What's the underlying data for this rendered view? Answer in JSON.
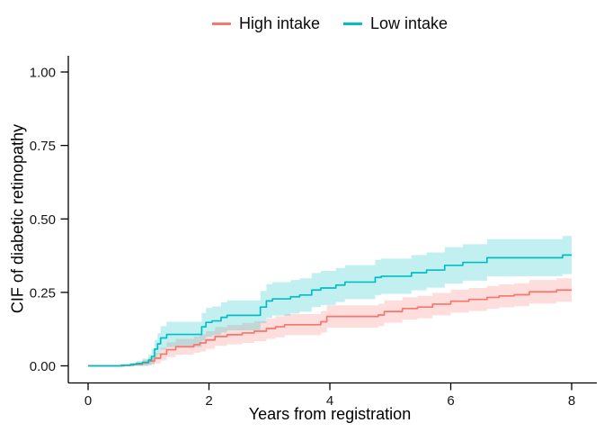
{
  "legend": {
    "items": [
      {
        "label": "High intake",
        "color": "#F8766D"
      },
      {
        "label": "Low intake",
        "color": "#00BFC4"
      }
    ]
  },
  "axes": {
    "x_title": "Years from registration",
    "y_title": "CIF of diabetic retinopathy"
  },
  "chart_data": {
    "type": "line",
    "subtype": "step-cumulative-incidence",
    "title": "",
    "xlabel": "Years from registration",
    "ylabel": "CIF of diabetic retinopathy",
    "xlim": [
      0,
      8
    ],
    "ylim": [
      0,
      1
    ],
    "xticks": [
      0,
      2,
      4,
      6,
      8
    ],
    "xtick_labels": [
      "0",
      "2",
      "4",
      "6",
      "8"
    ],
    "yticks": [
      0,
      0.25,
      0.5,
      0.75,
      1
    ],
    "ytick_labels": [
      "0.00",
      "0.25",
      "0.50",
      "0.75",
      "1.00"
    ],
    "grid": false,
    "legend_position": "top-center",
    "background": "#ffffff",
    "axis_color": "#000000",
    "band_opacity": 0.24,
    "series": [
      {
        "name": "High intake",
        "color": "#F8766D",
        "x": [
          0,
          0.6,
          0.75,
          0.9,
          1.0,
          1.1,
          1.2,
          1.3,
          1.45,
          1.75,
          1.85,
          1.95,
          2.1,
          2.3,
          2.55,
          2.75,
          2.95,
          3.1,
          3.25,
          3.85,
          3.95,
          4.8,
          4.9,
          5.2,
          5.45,
          5.7,
          6.0,
          6.3,
          6.6,
          6.8,
          7.05,
          7.3,
          7.75,
          8.0
        ],
        "y": [
          0,
          0.002,
          0.005,
          0.01,
          0.016,
          0.026,
          0.04,
          0.055,
          0.065,
          0.072,
          0.078,
          0.088,
          0.1,
          0.106,
          0.112,
          0.118,
          0.127,
          0.133,
          0.14,
          0.15,
          0.168,
          0.173,
          0.185,
          0.195,
          0.2,
          0.21,
          0.22,
          0.226,
          0.233,
          0.238,
          0.242,
          0.252,
          0.258,
          0.258
        ],
        "upper": [
          0,
          0.006,
          0.011,
          0.02,
          0.029,
          0.044,
          0.062,
          0.08,
          0.092,
          0.1,
          0.107,
          0.118,
          0.132,
          0.139,
          0.146,
          0.152,
          0.162,
          0.169,
          0.176,
          0.187,
          0.206,
          0.211,
          0.223,
          0.233,
          0.238,
          0.248,
          0.259,
          0.265,
          0.272,
          0.277,
          0.281,
          0.292,
          0.298,
          0.298
        ],
        "lower": [
          0,
          0,
          0,
          0,
          0.003,
          0.008,
          0.018,
          0.03,
          0.038,
          0.044,
          0.049,
          0.058,
          0.068,
          0.073,
          0.078,
          0.084,
          0.092,
          0.097,
          0.104,
          0.113,
          0.13,
          0.135,
          0.147,
          0.157,
          0.162,
          0.172,
          0.181,
          0.187,
          0.194,
          0.199,
          0.203,
          0.212,
          0.218,
          0.218
        ]
      },
      {
        "name": "Low intake",
        "color": "#00BFC4",
        "x": [
          0,
          0.55,
          0.7,
          0.8,
          0.9,
          1.0,
          1.05,
          1.1,
          1.15,
          1.2,
          1.3,
          1.88,
          1.95,
          2.05,
          2.2,
          2.3,
          2.85,
          2.95,
          3.05,
          3.35,
          3.5,
          3.7,
          3.85,
          4.1,
          4.25,
          4.75,
          4.85,
          5.35,
          5.6,
          5.9,
          6.2,
          6.6,
          7.85,
          8.0
        ],
        "y": [
          0,
          0.002,
          0.005,
          0.008,
          0.012,
          0.02,
          0.032,
          0.057,
          0.075,
          0.095,
          0.107,
          0.133,
          0.148,
          0.153,
          0.165,
          0.172,
          0.2,
          0.221,
          0.228,
          0.235,
          0.241,
          0.258,
          0.265,
          0.275,
          0.285,
          0.301,
          0.305,
          0.317,
          0.326,
          0.342,
          0.352,
          0.368,
          0.377,
          0.377
        ],
        "upper": [
          0,
          0.006,
          0.011,
          0.017,
          0.025,
          0.038,
          0.057,
          0.089,
          0.111,
          0.135,
          0.15,
          0.18,
          0.197,
          0.202,
          0.216,
          0.223,
          0.255,
          0.278,
          0.285,
          0.292,
          0.298,
          0.316,
          0.323,
          0.333,
          0.343,
          0.361,
          0.365,
          0.377,
          0.386,
          0.404,
          0.414,
          0.431,
          0.442,
          0.442
        ],
        "lower": [
          0,
          0,
          0,
          0,
          0,
          0.002,
          0.007,
          0.025,
          0.039,
          0.055,
          0.064,
          0.086,
          0.099,
          0.104,
          0.114,
          0.121,
          0.145,
          0.164,
          0.171,
          0.178,
          0.184,
          0.2,
          0.207,
          0.217,
          0.227,
          0.241,
          0.245,
          0.257,
          0.266,
          0.28,
          0.29,
          0.305,
          0.312,
          0.312
        ]
      }
    ]
  }
}
